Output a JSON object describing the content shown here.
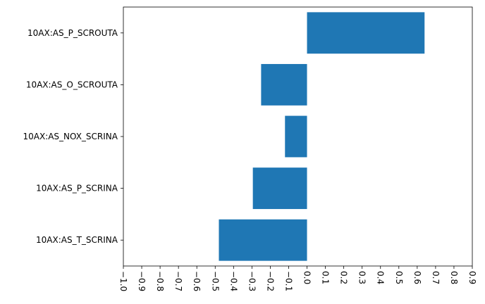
{
  "chart_data": {
    "type": "bar",
    "orientation": "horizontal",
    "categories": [
      "10AX:AS_T_SCRINA",
      "10AX:AS_P_SCRINA",
      "10AX:AS_NOX_SCRINA",
      "10AX:AS_O_SCROUTA",
      "10AX:AS_P_SCROUTA"
    ],
    "values": [
      -0.48,
      -0.295,
      -0.12,
      -0.25,
      0.64
    ],
    "title": "",
    "xlabel": "",
    "ylabel": "",
    "xlim": [
      -1.0,
      0.9
    ],
    "xticks": [
      -1.0,
      -0.9,
      -0.8,
      -0.7,
      -0.6,
      -0.5,
      -0.4,
      -0.3,
      -0.2,
      -0.1,
      0.0,
      0.1,
      0.2,
      0.3,
      0.4,
      0.5,
      0.6,
      0.7,
      0.8,
      0.9
    ],
    "xtick_labels": [
      "−1.0",
      "−0.9",
      "−0.8",
      "−0.7",
      "−0.6",
      "−0.5",
      "−0.4",
      "−0.3",
      "−0.2",
      "−0.1",
      "0.0",
      "0.1",
      "0.2",
      "0.3",
      "0.4",
      "0.5",
      "0.6",
      "0.7",
      "0.8",
      "0.9"
    ],
    "xtick_rotation": "vertical",
    "bar_color": "#1f77b4",
    "grid": false,
    "legend": "none"
  }
}
